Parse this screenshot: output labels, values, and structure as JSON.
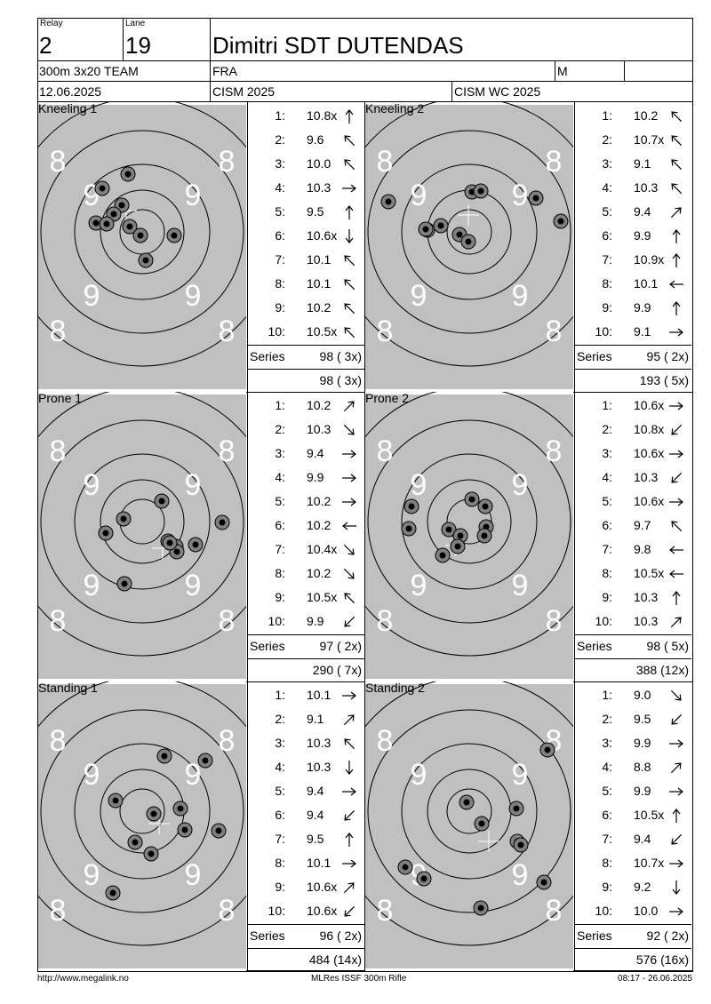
{
  "header": {
    "relay_label": "Relay",
    "relay_value": "2",
    "lane_label": "Lane",
    "lane_value": "19",
    "athlete_name": "Dimitri SDT DUTENDAS",
    "event": "300m 3x20 TEAM",
    "nation": "FRA",
    "gender": "M",
    "date": "12.06.2025",
    "competition": "CISM 2025",
    "match": "CISM WC 2025"
  },
  "target_ring_labels": {
    "ring8": "8",
    "ring9": "9"
  },
  "blocks": [
    {
      "left": {
        "title": "Kneeling 1",
        "shots": [
          {
            "n": "1:",
            "v": "10.8x",
            "arrow": "n"
          },
          {
            "n": "2:",
            "v": "9.6",
            "arrow": "nw"
          },
          {
            "n": "3:",
            "v": "10.0",
            "arrow": "nw"
          },
          {
            "n": "4:",
            "v": "10.3",
            "arrow": "e"
          },
          {
            "n": "5:",
            "v": "9.5",
            "arrow": "n"
          },
          {
            "n": "6:",
            "v": "10.6x",
            "arrow": "s"
          },
          {
            "n": "7:",
            "v": "10.1",
            "arrow": "nw"
          },
          {
            "n": "8:",
            "v": "10.1",
            "arrow": "nw"
          },
          {
            "n": "9:",
            "v": "10.2",
            "arrow": "nw"
          },
          {
            "n": "10:",
            "v": "10.5x",
            "arrow": "nw"
          }
        ],
        "series_label": "Series",
        "series_value": "98 ( 3x)",
        "total_value": "98 ( 3x)"
      },
      "right": {
        "title": "Kneeling 2",
        "shots": [
          {
            "n": "1:",
            "v": "10.2",
            "arrow": "nw"
          },
          {
            "n": "2:",
            "v": "10.7x",
            "arrow": "nw"
          },
          {
            "n": "3:",
            "v": "9.1",
            "arrow": "nw"
          },
          {
            "n": "4:",
            "v": "10.3",
            "arrow": "nw"
          },
          {
            "n": "5:",
            "v": "9.4",
            "arrow": "ne"
          },
          {
            "n": "6:",
            "v": "9.9",
            "arrow": "n"
          },
          {
            "n": "7:",
            "v": "10.9x",
            "arrow": "n"
          },
          {
            "n": "8:",
            "v": "10.1",
            "arrow": "w"
          },
          {
            "n": "9:",
            "v": "9.9",
            "arrow": "n"
          },
          {
            "n": "10:",
            "v": "9.1",
            "arrow": "e"
          }
        ],
        "series_label": "Series",
        "series_value": "95 ( 2x)",
        "total_value": "193 ( 5x)"
      }
    },
    {
      "left": {
        "title": "Prone 1",
        "shots": [
          {
            "n": "1:",
            "v": "10.2",
            "arrow": "ne"
          },
          {
            "n": "2:",
            "v": "10.3",
            "arrow": "se"
          },
          {
            "n": "3:",
            "v": "9.4",
            "arrow": "e"
          },
          {
            "n": "4:",
            "v": "9.9",
            "arrow": "e"
          },
          {
            "n": "5:",
            "v": "10.2",
            "arrow": "e"
          },
          {
            "n": "6:",
            "v": "10.2",
            "arrow": "w"
          },
          {
            "n": "7:",
            "v": "10.4x",
            "arrow": "se"
          },
          {
            "n": "8:",
            "v": "10.2",
            "arrow": "se"
          },
          {
            "n": "9:",
            "v": "10.5x",
            "arrow": "nw"
          },
          {
            "n": "10:",
            "v": "9.9",
            "arrow": "sw"
          }
        ],
        "series_label": "Series",
        "series_value": "97 ( 2x)",
        "total_value": "290 ( 7x)"
      },
      "right": {
        "title": "Prone 2",
        "shots": [
          {
            "n": "1:",
            "v": "10.6x",
            "arrow": "e"
          },
          {
            "n": "2:",
            "v": "10.8x",
            "arrow": "sw"
          },
          {
            "n": "3:",
            "v": "10.6x",
            "arrow": "e"
          },
          {
            "n": "4:",
            "v": "10.3",
            "arrow": "sw"
          },
          {
            "n": "5:",
            "v": "10.6x",
            "arrow": "e"
          },
          {
            "n": "6:",
            "v": "9.7",
            "arrow": "nw"
          },
          {
            "n": "7:",
            "v": "9.8",
            "arrow": "w"
          },
          {
            "n": "8:",
            "v": "10.5x",
            "arrow": "w"
          },
          {
            "n": "9:",
            "v": "10.3",
            "arrow": "n"
          },
          {
            "n": "10:",
            "v": "10.3",
            "arrow": "ne"
          }
        ],
        "series_label": "Series",
        "series_value": "98 ( 5x)",
        "total_value": "388 (12x)"
      }
    },
    {
      "left": {
        "title": "Standing 1",
        "shots": [
          {
            "n": "1:",
            "v": "10.1",
            "arrow": "e"
          },
          {
            "n": "2:",
            "v": "9.1",
            "arrow": "ne"
          },
          {
            "n": "3:",
            "v": "10.3",
            "arrow": "nw"
          },
          {
            "n": "4:",
            "v": "10.3",
            "arrow": "s"
          },
          {
            "n": "5:",
            "v": "9.4",
            "arrow": "e"
          },
          {
            "n": "6:",
            "v": "9.4",
            "arrow": "sw"
          },
          {
            "n": "7:",
            "v": "9.5",
            "arrow": "n"
          },
          {
            "n": "8:",
            "v": "10.1",
            "arrow": "e"
          },
          {
            "n": "9:",
            "v": "10.6x",
            "arrow": "ne"
          },
          {
            "n": "10:",
            "v": "10.6x",
            "arrow": "sw"
          }
        ],
        "series_label": "Series",
        "series_value": "96 ( 2x)",
        "total_value": "484 (14x)"
      },
      "right": {
        "title": "Standing 2",
        "shots": [
          {
            "n": "1:",
            "v": "9.0",
            "arrow": "se"
          },
          {
            "n": "2:",
            "v": "9.5",
            "arrow": "sw"
          },
          {
            "n": "3:",
            "v": "9.9",
            "arrow": "e"
          },
          {
            "n": "4:",
            "v": "8.8",
            "arrow": "ne"
          },
          {
            "n": "5:",
            "v": "9.9",
            "arrow": "e"
          },
          {
            "n": "6:",
            "v": "10.5x",
            "arrow": "n"
          },
          {
            "n": "7:",
            "v": "9.4",
            "arrow": "sw"
          },
          {
            "n": "8:",
            "v": "10.7x",
            "arrow": "e"
          },
          {
            "n": "9:",
            "v": "9.2",
            "arrow": "s"
          },
          {
            "n": "10:",
            "v": "10.0",
            "arrow": "e"
          }
        ],
        "series_label": "Series",
        "series_value": "92 ( 2x)",
        "total_value": "576 (16x)"
      }
    }
  ],
  "footer": {
    "url": "http://www.megalink.no",
    "software": "MLRes ISSF 300m Rifle",
    "timestamp": "08:17 - 26.06.2025"
  },
  "colors": {
    "target_gray": "#c0c0c0",
    "ring_white": "#ffffff",
    "line": "#000000"
  }
}
